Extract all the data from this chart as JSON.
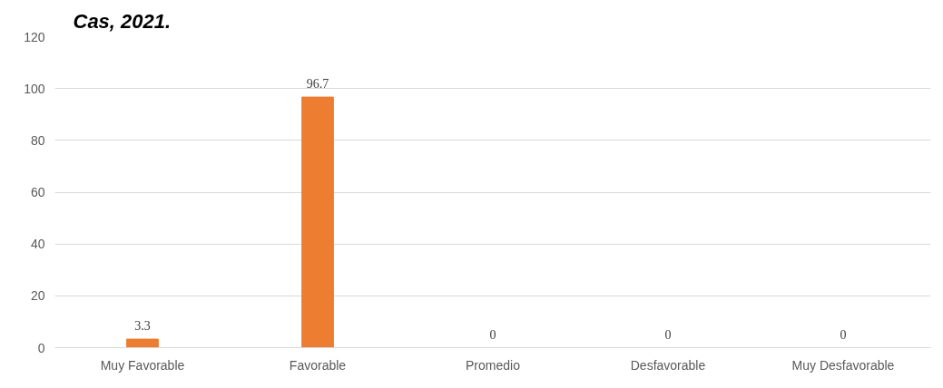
{
  "chart_data": {
    "type": "bar",
    "title": "Cas, 2021.",
    "categories": [
      "Muy Favorable",
      "Favorable",
      "Promedio",
      "Desfavorable",
      "Muy Desfavorable"
    ],
    "values": [
      3.3,
      96.7,
      0,
      0,
      0
    ],
    "color": "#ed7d31",
    "ylim": [
      0,
      120
    ],
    "yticks": [
      0,
      20,
      40,
      60,
      80,
      100,
      120
    ],
    "grid": "y",
    "data_labels": true
  }
}
